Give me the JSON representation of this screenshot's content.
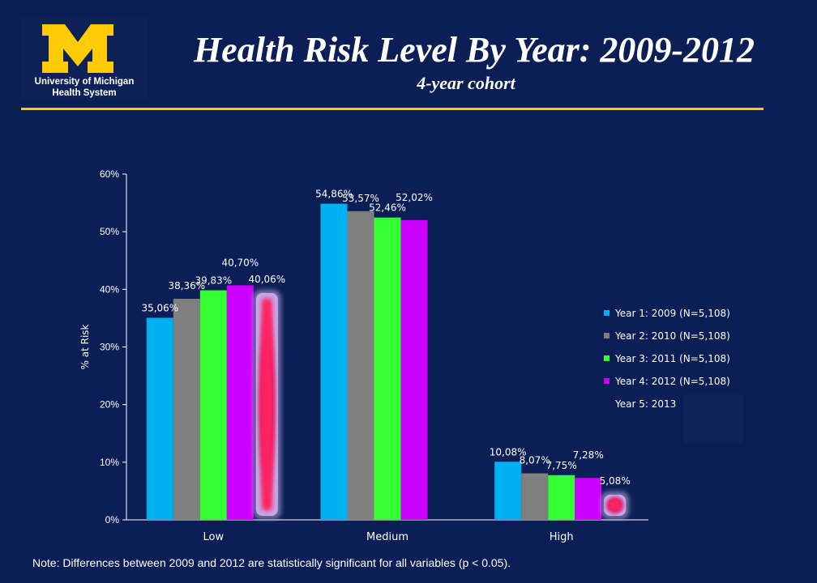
{
  "header": {
    "title": "Health Risk Level By Year: 2009-2012",
    "subtitle": "4-year cohort",
    "logo": {
      "line1": "University of Michigan",
      "line2": "Health System",
      "color": "#ffcb05"
    }
  },
  "note": "Note:  Differences between 2009 and 2012 are statistically significant for all variables (p < 0.05).",
  "chart_data": {
    "type": "bar",
    "categories": [
      "Low",
      "Medium",
      "High"
    ],
    "series": [
      {
        "name": "Year 1: 2009 (N=5,108)",
        "color": "#00b0f0",
        "values": [
          35.06,
          54.86,
          10.08
        ],
        "labels": [
          "35,06%",
          "54,86%",
          "10,08%"
        ]
      },
      {
        "name": "Year 2: 2010 (N=5,108)",
        "color": "#7f7f7f",
        "values": [
          38.36,
          53.57,
          8.07
        ],
        "labels": [
          "38,36%",
          "53,57%",
          "8,07%"
        ]
      },
      {
        "name": "Year 3: 2011 (N=5,108)",
        "color": "#33ff33",
        "values": [
          39.83,
          52.46,
          7.75
        ],
        "labels": [
          "39,83%",
          "52,46%",
          "7,75%"
        ]
      },
      {
        "name": "Year 4: 2012 (N=5,108)",
        "color": "#cc00ff",
        "values": [
          40.7,
          52.02,
          7.28
        ],
        "labels": [
          "40,70%",
          "52,02%",
          "7,28%"
        ]
      },
      {
        "name": "Year 5: 2013",
        "color": "#ff2060",
        "values": [
          40.06,
          null,
          5.08
        ],
        "labels": [
          "40,06%",
          "",
          "5,08%"
        ]
      }
    ],
    "ylabel": "% at Risk",
    "xlabel": "",
    "ylim": [
      0,
      60
    ],
    "yticks": [
      0,
      10,
      20,
      30,
      40,
      50,
      60
    ],
    "ytick_labels": [
      "0%",
      "10%",
      "20%",
      "30%",
      "40%",
      "50%",
      "60%"
    ],
    "grid": false,
    "legend_position": "right"
  }
}
